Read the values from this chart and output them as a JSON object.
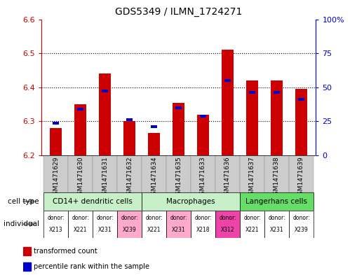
{
  "title": "GDS5349 / ILMN_1724271",
  "samples": [
    "GSM1471629",
    "GSM1471630",
    "GSM1471631",
    "GSM1471632",
    "GSM1471634",
    "GSM1471635",
    "GSM1471633",
    "GSM1471636",
    "GSM1471637",
    "GSM1471638",
    "GSM1471639"
  ],
  "red_values": [
    6.28,
    6.35,
    6.44,
    6.3,
    6.265,
    6.355,
    6.32,
    6.51,
    6.42,
    6.42,
    6.395
  ],
  "blue_values": [
    6.295,
    6.335,
    6.39,
    6.305,
    6.285,
    6.34,
    6.315,
    6.42,
    6.385,
    6.385,
    6.365
  ],
  "ylim_left": [
    6.2,
    6.6
  ],
  "ylim_right": [
    0,
    100
  ],
  "yticks_left": [
    6.2,
    6.3,
    6.4,
    6.5,
    6.6
  ],
  "yticks_right": [
    0,
    25,
    50,
    75,
    100
  ],
  "ytick_labels_right": [
    "0",
    "25",
    "50",
    "75",
    "100%"
  ],
  "grid_values": [
    6.3,
    6.4,
    6.5
  ],
  "cell_types": [
    {
      "label": "CD14+ dendritic cells",
      "start": 0,
      "end": 3
    },
    {
      "label": "Macrophages",
      "start": 4,
      "end": 7
    },
    {
      "label": "Langerhans cells",
      "start": 8,
      "end": 10
    }
  ],
  "cell_type_colors": [
    "#c8f0c8",
    "#c8f0c8",
    "#66dd66"
  ],
  "donors": [
    "X213",
    "X221",
    "X231",
    "X239",
    "X221",
    "X231",
    "X218",
    "X312",
    "X221",
    "X231",
    "X239"
  ],
  "donor_colors": [
    "#ffffff",
    "#ffffff",
    "#ffffff",
    "#ffaacc",
    "#ffffff",
    "#ffaacc",
    "#ffffff",
    "#ee44aa",
    "#ffffff",
    "#ffffff",
    "#ffffff"
  ],
  "bar_color_red": "#cc0000",
  "bar_color_blue": "#0000cc",
  "base_value": 6.2,
  "background_color": "#ffffff",
  "tick_color_left": "#cc0000",
  "tick_color_right": "#0000cc",
  "xtick_bg_color": "#cccccc",
  "border_color": "#000000"
}
